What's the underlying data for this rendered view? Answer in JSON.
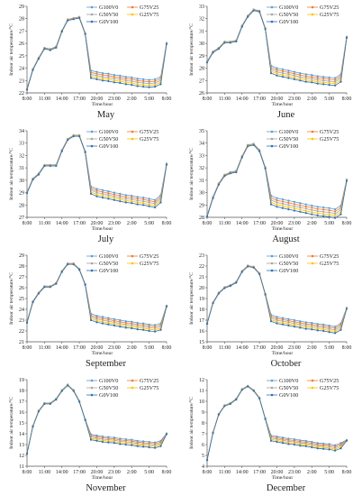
{
  "figure": {
    "legend": [
      "G100V0",
      "G75V25",
      "G50V50",
      "G25V75",
      "G0V100"
    ],
    "series_colors": {
      "G100V0": "#5b9bd5",
      "G75V25": "#ed7d31",
      "G50V50": "#a5a5a5",
      "G25V75": "#ffc000",
      "G0V100": "#2e6fb5"
    }
  },
  "chart_data": [
    {
      "type": "line",
      "title": "May",
      "xlabel": "Time/hour",
      "ylabel": "Indoor air temperature/°C",
      "xticks": [
        "8:00",
        "11:00",
        "14:00",
        "17:00",
        "20:00",
        "23:00",
        "2:00",
        "5:00",
        "8:00"
      ],
      "ylim": [
        22,
        29
      ],
      "ytick_step": 1,
      "x": [
        8,
        9,
        10,
        11,
        12,
        13,
        14,
        15,
        16,
        17,
        18,
        19,
        20,
        21,
        22,
        23,
        24,
        25,
        26,
        27,
        28,
        29,
        30,
        31,
        32
      ],
      "base": [
        22.3,
        23.9,
        24.8,
        25.6,
        25.5,
        25.7,
        27.0,
        27.9,
        28.0,
        28.1,
        26.8,
        23.5,
        23.4,
        23.3,
        23.25,
        23.15,
        23.1,
        23.0,
        22.95,
        22.85,
        22.8,
        22.75,
        22.8,
        23.0,
        26.0
      ],
      "spread": 0.6,
      "legend_position": "top-right"
    },
    {
      "type": "line",
      "title": "June",
      "xlabel": "Time/hour",
      "ylabel": "Indoor air temperature/°C",
      "xticks": [
        "8:00",
        "11:00",
        "14:00",
        "17:00",
        "20:00",
        "23:00",
        "2:00",
        "5:00",
        "8:00"
      ],
      "ylim": [
        26,
        33
      ],
      "ytick_step": 1,
      "x": [
        8,
        9,
        10,
        11,
        12,
        13,
        14,
        15,
        16,
        17,
        18,
        19,
        20,
        21,
        22,
        23,
        24,
        25,
        26,
        27,
        28,
        29,
        30,
        31,
        32
      ],
      "base": [
        28.5,
        29.3,
        29.6,
        30.1,
        30.1,
        30.2,
        31.4,
        32.2,
        32.7,
        32.6,
        31.2,
        27.9,
        27.7,
        27.6,
        27.5,
        27.4,
        27.3,
        27.2,
        27.15,
        27.05,
        27.0,
        26.95,
        26.9,
        27.2,
        30.5
      ],
      "spread": 0.6,
      "legend_position": "top-right"
    },
    {
      "type": "line",
      "title": "July",
      "xlabel": "Time/hour",
      "ylabel": "Indoor air temperature/°C",
      "xticks": [
        "8:00",
        "11:00",
        "14:00",
        "17:00",
        "20:00",
        "23:00",
        "2:00",
        "5:00",
        "8:00"
      ],
      "ylim": [
        27,
        34
      ],
      "ytick_step": 1,
      "x": [
        8,
        9,
        10,
        11,
        12,
        13,
        14,
        15,
        16,
        17,
        18,
        19,
        20,
        21,
        22,
        23,
        24,
        25,
        26,
        27,
        28,
        29,
        30,
        31,
        32
      ],
      "base": [
        29.0,
        30.1,
        30.5,
        31.2,
        31.2,
        31.2,
        32.4,
        33.3,
        33.6,
        33.6,
        32.3,
        29.2,
        29.0,
        28.9,
        28.8,
        28.7,
        28.6,
        28.5,
        28.45,
        28.35,
        28.3,
        28.2,
        28.1,
        28.5,
        31.3
      ],
      "spread": 0.6,
      "legend_position": "top-right"
    },
    {
      "type": "line",
      "title": "August",
      "xlabel": "Time/hour",
      "ylabel": "Indoor air temperature/°C",
      "xticks": [
        "8:00",
        "11:00",
        "14:00",
        "17:00",
        "20:00",
        "23:00",
        "2:00",
        "5:00",
        "8:00"
      ],
      "ylim": [
        28,
        35
      ],
      "ytick_step": 1,
      "x": [
        8,
        9,
        10,
        11,
        12,
        13,
        14,
        15,
        16,
        17,
        18,
        19,
        20,
        21,
        22,
        23,
        24,
        25,
        26,
        27,
        28,
        29,
        30,
        31,
        32
      ],
      "base": [
        28.1,
        29.6,
        30.7,
        31.4,
        31.6,
        31.7,
        32.9,
        33.8,
        33.9,
        33.4,
        32.0,
        29.4,
        29.2,
        29.1,
        29.0,
        28.9,
        28.8,
        28.7,
        28.6,
        28.5,
        28.45,
        28.4,
        28.3,
        28.6,
        31.0
      ],
      "spread": 0.7,
      "legend_position": "top-right"
    },
    {
      "type": "line",
      "title": "September",
      "xlabel": "Time/hour",
      "ylabel": "Indoor air temperature/°C",
      "xticks": [
        "8:00",
        "11:00",
        "14:00",
        "17:00",
        "20:00",
        "23:00",
        "2:00",
        "5:00",
        "8:00"
      ],
      "ylim": [
        21,
        29
      ],
      "ytick_step": 1,
      "x": [
        8,
        9,
        10,
        11,
        12,
        13,
        14,
        15,
        16,
        17,
        18,
        19,
        20,
        21,
        22,
        23,
        24,
        25,
        26,
        27,
        28,
        29,
        30,
        31,
        32
      ],
      "base": [
        22.8,
        24.7,
        25.5,
        26.1,
        26.1,
        26.4,
        27.5,
        28.2,
        28.2,
        27.7,
        26.3,
        23.3,
        23.1,
        23.0,
        22.9,
        22.8,
        22.7,
        22.6,
        22.55,
        22.45,
        22.4,
        22.3,
        22.25,
        22.4,
        24.3
      ],
      "spread": 0.6,
      "legend_position": "top-right"
    },
    {
      "type": "line",
      "title": "October",
      "xlabel": "Time/hour",
      "ylabel": "Indoor air temperature/°C",
      "xticks": [
        "8:00",
        "11:00",
        "14:00",
        "17:00",
        "20:00",
        "23:00",
        "2:00",
        "5:00",
        "8:00"
      ],
      "ylim": [
        15,
        23
      ],
      "ytick_step": 1,
      "x": [
        8,
        9,
        10,
        11,
        12,
        13,
        14,
        15,
        16,
        17,
        18,
        19,
        20,
        21,
        22,
        23,
        24,
        25,
        26,
        27,
        28,
        29,
        30,
        31,
        32
      ],
      "base": [
        16.7,
        18.6,
        19.5,
        20.0,
        20.2,
        20.5,
        21.5,
        22.0,
        21.9,
        21.3,
        19.4,
        17.2,
        17.0,
        16.9,
        16.8,
        16.7,
        16.6,
        16.5,
        16.45,
        16.35,
        16.3,
        16.2,
        16.1,
        16.4,
        18.1
      ],
      "spread": 0.6,
      "legend_position": "top-right"
    },
    {
      "type": "line",
      "title": "November",
      "xlabel": "Time/hour",
      "ylabel": "Indoor air temperature/°C",
      "xticks": [
        "8:00",
        "11:00",
        "14:00",
        "17:00",
        "20:00",
        "23:00",
        "2:00",
        "5:00",
        "8:00"
      ],
      "ylim": [
        11,
        19
      ],
      "ytick_step": 1,
      "x": [
        8,
        9,
        10,
        11,
        12,
        13,
        14,
        15,
        16,
        17,
        18,
        19,
        20,
        21,
        22,
        23,
        24,
        25,
        26,
        27,
        28,
        29,
        30,
        31,
        32
      ],
      "base": [
        12.2,
        14.7,
        16.1,
        16.8,
        16.8,
        17.2,
        18.0,
        18.5,
        18.0,
        17.0,
        15.3,
        13.7,
        13.6,
        13.5,
        13.45,
        13.4,
        13.3,
        13.25,
        13.2,
        13.1,
        13.05,
        13.0,
        12.95,
        13.1,
        14.0
      ],
      "spread": 0.5,
      "legend_position": "top-right"
    },
    {
      "type": "line",
      "title": "December",
      "xlabel": "Time/hour",
      "ylabel": "Indoor air temperature/°C",
      "xticks": [
        "8:00",
        "11:00",
        "14:00",
        "17:00",
        "20:00",
        "23:00",
        "2:00",
        "5:00",
        "8:00"
      ],
      "ylim": [
        4,
        12
      ],
      "ytick_step": 1,
      "x": [
        8,
        9,
        10,
        11,
        12,
        13,
        14,
        15,
        16,
        17,
        18,
        19,
        20,
        21,
        22,
        23,
        24,
        25,
        26,
        27,
        28,
        29,
        30,
        31,
        32
      ],
      "base": [
        4.6,
        7.1,
        8.8,
        9.6,
        9.8,
        10.2,
        11.1,
        11.4,
        11.0,
        10.3,
        8.4,
        6.6,
        6.5,
        6.4,
        6.3,
        6.25,
        6.15,
        6.1,
        6.0,
        5.9,
        5.85,
        5.8,
        5.7,
        5.9,
        6.4
      ],
      "spread": 0.5,
      "legend_position": "top-right"
    }
  ]
}
